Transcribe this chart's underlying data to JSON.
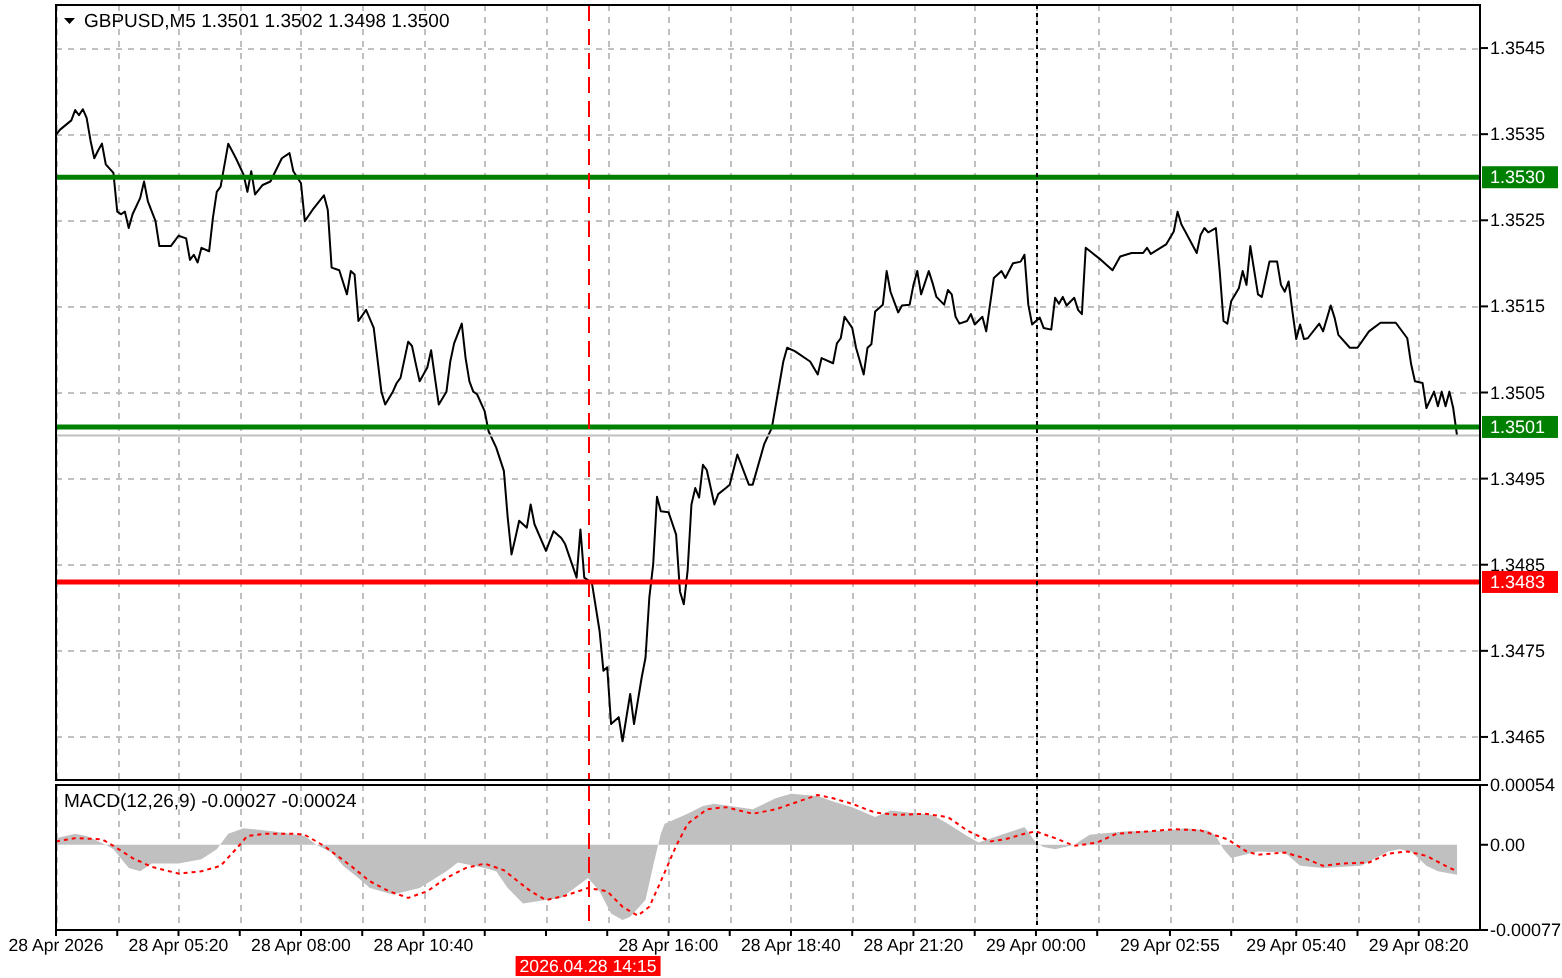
{
  "chart_data": [
    {
      "type": "line",
      "title": "GBPUSD,M5 1.3501 1.3502 1.3498 1.3500",
      "series": [
        {
          "color": "#000000",
          "x": [
            "2026-04-28T02:40",
            "2026-04-28T02:45",
            "2026-04-28T03:00",
            "2026-04-28T03:05",
            "2026-04-28T03:10",
            "2026-04-28T03:15",
            "2026-04-28T03:20",
            "2026-04-28T03:25",
            "2026-04-28T03:30",
            "2026-04-28T03:35",
            "2026-04-28T03:40",
            "2026-04-28T03:45",
            "2026-04-28T03:55",
            "2026-04-28T04:00",
            "2026-04-28T04:05",
            "2026-04-28T04:10",
            "2026-04-28T04:15",
            "2026-04-28T04:20",
            "2026-04-28T04:30",
            "2026-04-28T04:35",
            "2026-04-28T04:40",
            "2026-04-28T04:50",
            "2026-04-28T04:55",
            "2026-04-28T05:10",
            "2026-04-28T05:20",
            "2026-04-28T05:30",
            "2026-04-28T05:35",
            "2026-04-28T05:40",
            "2026-04-28T05:45",
            "2026-04-28T05:50",
            "2026-04-28T06:00",
            "2026-04-28T06:05",
            "2026-04-28T06:10",
            "2026-04-28T06:15",
            "2026-04-28T06:25",
            "2026-04-28T06:35",
            "2026-04-28T06:45",
            "2026-04-28T06:50",
            "2026-04-28T06:55",
            "2026-04-28T07:00",
            "2026-04-28T07:10",
            "2026-04-28T07:20",
            "2026-04-28T07:35",
            "2026-04-28T07:45",
            "2026-04-28T07:50",
            "2026-04-28T08:00",
            "2026-04-28T08:05",
            "2026-04-28T08:15",
            "2026-04-28T08:30",
            "2026-04-28T08:35",
            "2026-04-28T08:40",
            "2026-04-28T08:50",
            "2026-04-28T09:00",
            "2026-04-28T09:05",
            "2026-04-28T09:10",
            "2026-04-28T09:15",
            "2026-04-28T09:25",
            "2026-04-28T09:35",
            "2026-04-28T09:45",
            "2026-04-28T09:50",
            "2026-04-28T10:00",
            "2026-04-28T10:05",
            "2026-04-28T10:10",
            "2026-04-28T10:20",
            "2026-04-28T10:25",
            "2026-04-28T10:30",
            "2026-04-28T10:35",
            "2026-04-28T10:45",
            "2026-04-28T10:50",
            "2026-04-28T10:55",
            "2026-04-28T11:00",
            "2026-04-28T11:10",
            "2026-04-28T11:15",
            "2026-04-28T11:20",
            "2026-04-28T11:30",
            "2026-04-28T11:35",
            "2026-04-28T11:40",
            "2026-04-28T11:45",
            "2026-04-28T11:50",
            "2026-04-28T12:00",
            "2026-04-28T12:05",
            "2026-04-28T12:15",
            "2026-04-28T12:25",
            "2026-04-28T12:30",
            "2026-04-28T12:35",
            "2026-04-28T12:40",
            "2026-04-28T12:45",
            "2026-04-28T12:55",
            "2026-04-28T13:00",
            "2026-04-28T13:05",
            "2026-04-28T13:20",
            "2026-04-28T13:30",
            "2026-04-28T13:40",
            "2026-04-28T13:45",
            "2026-04-28T14:00",
            "2026-04-28T14:05",
            "2026-04-28T14:10",
            "2026-04-28T14:20",
            "2026-04-28T14:30",
            "2026-04-28T14:35",
            "2026-04-28T14:40",
            "2026-04-28T14:45",
            "2026-04-28T14:55",
            "2026-04-28T15:00",
            "2026-04-28T15:10",
            "2026-04-28T15:15",
            "2026-04-28T15:25",
            "2026-04-28T15:30",
            "2026-04-28T15:35",
            "2026-04-28T15:40",
            "2026-04-28T15:45",
            "2026-04-28T15:50",
            "2026-04-28T16:00",
            "2026-04-28T16:10",
            "2026-04-28T16:15",
            "2026-04-28T16:20",
            "2026-04-28T16:25",
            "2026-04-28T16:30",
            "2026-04-28T16:35",
            "2026-04-28T16:40",
            "2026-04-28T16:45",
            "2026-04-28T16:50",
            "2026-04-28T17:00",
            "2026-04-28T17:05",
            "2026-04-28T17:15",
            "2026-04-28T17:20",
            "2026-04-28T17:30",
            "2026-04-28T17:45",
            "2026-04-28T17:50",
            "2026-04-28T18:05",
            "2026-04-28T18:15",
            "2026-04-28T18:30",
            "2026-04-28T18:35",
            "2026-04-28T18:45",
            "2026-04-28T19:05",
            "2026-04-28T19:15",
            "2026-04-28T19:20",
            "2026-04-28T19:35",
            "2026-04-28T19:40",
            "2026-04-28T19:45",
            "2026-04-28T19:50",
            "2026-04-28T20:00",
            "2026-04-28T20:05",
            "2026-04-28T20:15",
            "2026-04-28T20:20",
            "2026-04-28T20:25",
            "2026-04-28T20:30",
            "2026-04-28T20:40",
            "2026-04-28T20:45",
            "2026-04-28T20:50",
            "2026-04-28T21:00",
            "2026-04-28T21:05",
            "2026-04-28T21:15",
            "2026-04-28T21:20",
            "2026-04-28T21:25",
            "2026-04-28T21:30",
            "2026-04-28T21:40",
            "2026-04-28T21:45",
            "2026-04-28T21:50",
            "2026-04-28T22:00",
            "2026-04-28T22:05",
            "2026-04-28T22:10",
            "2026-04-28T22:15",
            "2026-04-28T22:20",
            "2026-04-28T22:30",
            "2026-04-28T22:35",
            "2026-04-28T22:40",
            "2026-04-28T22:50",
            "2026-04-28T22:55",
            "2026-04-28T23:00",
            "2026-04-28T23:05",
            "2026-04-28T23:15",
            "2026-04-28T23:20",
            "2026-04-28T23:30",
            "2026-04-28T23:40",
            "2026-04-28T23:45",
            "2026-04-28T23:50",
            "2026-04-28T23:55",
            "2026-04-29T00:05",
            "2026-04-29T00:10",
            "2026-04-29T00:20",
            "2026-04-29T00:25",
            "2026-04-29T00:30",
            "2026-04-29T00:35",
            "2026-04-29T00:40",
            "2026-04-29T00:50",
            "2026-04-29T00:55",
            "2026-04-29T01:00",
            "2026-04-29T01:05",
            "2026-04-29T01:25",
            "2026-04-29T01:40",
            "2026-04-29T01:50",
            "2026-04-29T02:05",
            "2026-04-29T02:20",
            "2026-04-29T02:25",
            "2026-04-29T02:30",
            "2026-04-29T02:50",
            "2026-04-29T03:00",
            "2026-04-29T03:05",
            "2026-04-29T03:10",
            "2026-04-29T03:15",
            "2026-04-29T03:30",
            "2026-04-29T03:35",
            "2026-04-29T03:40",
            "2026-04-29T03:45",
            "2026-04-29T03:55",
            "2026-04-29T04:00",
            "2026-04-29T04:05",
            "2026-04-29T04:10",
            "2026-04-29T04:15",
            "2026-04-29T04:25",
            "2026-04-29T04:30",
            "2026-04-29T04:35",
            "2026-04-29T04:40",
            "2026-04-29T04:50",
            "2026-04-29T04:55",
            "2026-04-29T05:05",
            "2026-04-29T05:15",
            "2026-04-29T05:20",
            "2026-04-29T05:25",
            "2026-04-29T05:30",
            "2026-04-29T05:35",
            "2026-04-29T05:40",
            "2026-04-29T05:45",
            "2026-04-29T05:50",
            "2026-04-29T05:55",
            "2026-04-29T06:10",
            "2026-04-29T06:15",
            "2026-04-29T06:25",
            "2026-04-29T06:30",
            "2026-04-29T06:35",
            "2026-04-29T06:50",
            "2026-04-29T07:00",
            "2026-04-29T07:15",
            "2026-04-29T07:30",
            "2026-04-29T07:50",
            "2026-04-29T08:05",
            "2026-04-29T08:10",
            "2026-04-29T08:15",
            "2026-04-29T08:25",
            "2026-04-29T08:30",
            "2026-04-29T08:40",
            "2026-04-29T08:45",
            "2026-04-29T08:50",
            "2026-04-29T08:55",
            "2026-04-29T09:00",
            "2026-04-29T09:05",
            "2026-04-29T09:10"
          ],
          "values": [
            1.35349,
            1.35355,
            1.35366,
            1.35378,
            1.35372,
            1.35379,
            1.35369,
            1.35343,
            1.35322,
            1.35331,
            1.35339,
            1.35315,
            1.35305,
            1.3526,
            1.35257,
            1.3526,
            1.35241,
            1.35257,
            1.35276,
            1.35295,
            1.35272,
            1.35249,
            1.3522,
            1.3522,
            1.35232,
            1.35229,
            1.35204,
            1.3521,
            1.35201,
            1.35218,
            1.35214,
            1.35253,
            1.35283,
            1.35289,
            1.35339,
            1.35322,
            1.35303,
            1.35283,
            1.35307,
            1.3528,
            1.35291,
            1.35295,
            1.35322,
            1.35328,
            1.35307,
            1.35293,
            1.35249,
            1.35262,
            1.35279,
            1.35262,
            1.35195,
            1.35192,
            1.35164,
            1.35191,
            1.35187,
            1.35133,
            1.35146,
            1.35125,
            1.35051,
            1.35036,
            1.35051,
            1.35061,
            1.35067,
            1.35109,
            1.35104,
            1.35083,
            1.35063,
            1.35079,
            1.35099,
            1.35067,
            1.35036,
            1.35051,
            1.35086,
            1.35107,
            1.3513,
            1.3509,
            1.35063,
            1.35051,
            1.35048,
            1.35028,
            1.35005,
            1.34986,
            1.34959,
            1.34905,
            1.34862,
            1.34881,
            1.34901,
            1.34893,
            1.3492,
            1.34897,
            1.34866,
            1.34889,
            1.34881,
            1.34874,
            1.34835,
            1.34891,
            1.34835,
            1.34829,
            1.34773,
            1.34727,
            1.34731,
            1.34665,
            1.34673,
            1.34645,
            1.347,
            1.34665,
            1.34719,
            1.34742,
            1.34812,
            1.3485,
            1.34929,
            1.34912,
            1.34911,
            1.34885,
            1.34819,
            1.34804,
            1.34843,
            1.3492,
            1.34939,
            1.34928,
            1.34966,
            1.3496,
            1.3492,
            1.34932,
            1.34939,
            1.34943,
            1.34978,
            1.34943,
            1.34943,
            1.3499,
            1.35009,
            1.35086,
            1.35102,
            1.35098,
            1.35086,
            1.35071,
            1.3509,
            1.35084,
            1.35107,
            1.35113,
            1.35138,
            1.35125,
            1.35102,
            1.35071,
            1.35102,
            1.35106,
            1.35144,
            1.35152,
            1.35191,
            1.35167,
            1.35143,
            1.35151,
            1.35152,
            1.35175,
            1.35191,
            1.35164,
            1.35191,
            1.35177,
            1.35161,
            1.35152,
            1.35169,
            1.35164,
            1.35138,
            1.3513,
            1.35133,
            1.35141,
            1.35129,
            1.35138,
            1.35121,
            1.35152,
            1.35183,
            1.35191,
            1.35183,
            1.352,
            1.35202,
            1.3521,
            1.35152,
            1.35129,
            1.35137,
            1.35125,
            1.35123,
            1.3516,
            1.35153,
            1.35161,
            1.35151,
            1.3516,
            1.35146,
            1.35141,
            1.35218,
            1.35204,
            1.35192,
            1.35208,
            1.35212,
            1.35212,
            1.35218,
            1.35211,
            1.35222,
            1.35237,
            1.3526,
            1.35245,
            1.35237,
            1.35212,
            1.35233,
            1.35241,
            1.35236,
            1.35241,
            1.35191,
            1.35133,
            1.3513,
            1.35156,
            1.35171,
            1.35191,
            1.35175,
            1.3522,
            1.35164,
            1.35161,
            1.35202,
            1.35202,
            1.35175,
            1.35167,
            1.35179,
            1.35144,
            1.35112,
            1.35129,
            1.35112,
            1.35113,
            1.3513,
            1.35121,
            1.35151,
            1.35137,
            1.35117,
            1.35102,
            1.35102,
            1.35121,
            1.35131,
            1.35131,
            1.35113,
            1.35083,
            1.35063,
            1.35061,
            1.35032,
            1.35051,
            1.35034,
            1.35051,
            1.35034,
            1.35051,
            1.35032,
            1.35
          ]
        }
      ],
      "xlim": [
        "2026-04-28T02:40",
        "2026-04-29T09:40"
      ],
      "xticks": [
        {
          "value": "2026-04-28T02:40",
          "label": null
        },
        {
          "value": "2026-04-28T04:00",
          "label": null
        },
        {
          "value": "2026-04-28T05:20",
          "label": null
        },
        {
          "value": "2026-04-28T06:40",
          "label": null
        },
        {
          "value": "2026-04-28T08:00",
          "label": null
        },
        {
          "value": "2026-04-28T09:20",
          "label": null
        },
        {
          "value": "2026-04-28T10:40",
          "label": null
        },
        {
          "value": "2026-04-28T12:00",
          "label": null
        },
        {
          "value": "2026-04-28T13:20",
          "label": null
        },
        {
          "value": "2026-04-28T14:40",
          "label": null
        },
        {
          "value": "2026-04-28T16:00",
          "label": null
        },
        {
          "value": "2026-04-28T17:20",
          "label": null
        },
        {
          "value": "2026-04-28T18:40",
          "label": null
        },
        {
          "value": "2026-04-28T20:00",
          "label": null
        },
        {
          "value": "2026-04-28T21:20",
          "label": null
        },
        {
          "value": "2026-04-28T22:40",
          "label": null
        },
        {
          "value": "2026-04-29T00:00",
          "label": null
        },
        {
          "value": "2026-04-29T01:20",
          "label": null
        },
        {
          "value": "2026-04-29T02:55",
          "label": null
        },
        {
          "value": "2026-04-29T04:15",
          "label": null
        },
        {
          "value": "2026-04-29T05:40",
          "label": null
        },
        {
          "value": "2026-04-29T07:00",
          "label": null
        },
        {
          "value": "2026-04-29T08:20",
          "label": null
        }
      ],
      "ylim": [
        1.346,
        1.355
      ],
      "yticks": [
        1.3545,
        1.3535,
        1.3525,
        1.3515,
        1.3505,
        1.3495,
        1.3485,
        1.3475,
        1.3465
      ],
      "grid": true,
      "tick_labels": "y",
      "ref_lines": [
        {
          "axis": "y",
          "value": 1.353,
          "label": "1.3530",
          "color": "#008000"
        },
        {
          "axis": "y",
          "value": 1.3501,
          "label": "1.3501",
          "color": "#008000"
        },
        {
          "axis": "y",
          "value": 1.35,
          "color": "#c0c0c0"
        },
        {
          "axis": "y",
          "value": 1.3483,
          "label": "1.3483",
          "color": "#ff0000"
        },
        {
          "axis": "x",
          "value": "2026-04-28T14:15",
          "color": "#ff0000",
          "line_style": "dashed"
        },
        {
          "axis": "x",
          "value": "2026-04-29T00:00",
          "color": "#000000",
          "line_style": "dotted"
        }
      ]
    },
    {
      "type": "area",
      "title": "MACD(12,26,9) -0.00027 -0.00024",
      "series": [
        {
          "color": "#c0c0c0",
          "x": [
            "2026-04-28T02:40",
            "2026-04-28T03:05",
            "2026-04-28T03:20",
            "2026-04-28T03:45",
            "2026-04-28T03:55",
            "2026-04-28T04:15",
            "2026-04-28T04:30",
            "2026-04-28T04:45",
            "2026-04-28T05:20",
            "2026-04-28T05:50",
            "2026-04-28T06:10",
            "2026-04-28T06:25",
            "2026-04-28T06:45",
            "2026-04-28T07:25",
            "2026-04-28T08:05",
            "2026-04-28T08:20",
            "2026-04-28T08:40",
            "2026-04-28T08:55",
            "2026-04-28T09:15",
            "2026-04-28T09:30",
            "2026-04-28T10:00",
            "2026-04-28T10:35",
            "2026-04-28T11:10",
            "2026-04-28T11:25",
            "2026-04-28T12:00",
            "2026-04-28T12:15",
            "2026-04-28T12:30",
            "2026-04-28T12:50",
            "2026-04-28T13:20",
            "2026-04-28T13:40",
            "2026-04-28T14:15",
            "2026-04-28T14:30",
            "2026-04-28T14:45",
            "2026-04-28T15:00",
            "2026-04-28T15:10",
            "2026-04-28T15:30",
            "2026-04-28T15:40",
            "2026-04-28T15:50",
            "2026-04-28T15:55",
            "2026-04-28T16:25",
            "2026-04-28T16:45",
            "2026-04-28T17:00",
            "2026-04-28T17:50",
            "2026-04-28T18:05",
            "2026-04-28T18:20",
            "2026-04-28T18:40",
            "2026-04-28T19:15",
            "2026-04-28T19:35",
            "2026-04-28T20:00",
            "2026-04-28T20:30",
            "2026-04-28T20:50",
            "2026-04-28T21:45",
            "2026-04-28T22:05",
            "2026-04-28T22:30",
            "2026-04-28T22:45",
            "2026-04-28T23:15",
            "2026-04-28T23:45",
            "2026-04-29T00:00",
            "2026-04-29T00:10",
            "2026-04-29T00:25",
            "2026-04-29T00:50",
            "2026-04-29T01:10",
            "2026-04-29T01:55",
            "2026-04-29T02:50",
            "2026-04-29T03:15",
            "2026-04-29T03:45",
            "2026-04-29T03:55",
            "2026-04-29T04:05",
            "2026-04-29T04:15",
            "2026-04-29T04:50",
            "2026-04-29T05:25",
            "2026-04-29T05:45",
            "2026-04-29T06:15",
            "2026-04-29T07:05",
            "2026-04-29T07:40",
            "2026-04-29T07:55",
            "2026-04-29T08:10",
            "2026-04-29T08:30",
            "2026-04-29T08:45",
            "2026-04-29T09:10"
          ],
          "values": [
            6e-05,
            0.0001,
            8e-05,
            0,
            -4e-05,
            -0.00021,
            -0.00024,
            -0.00017,
            -0.00017,
            -0.00013,
            -4e-05,
            0.0001,
            0.00015,
            0.00012,
            8e-05,
            0,
            -7e-05,
            -0.00019,
            -0.0003,
            -0.00039,
            -0.00045,
            -0.00039,
            -0.00024,
            -0.00016,
            -0.00021,
            -0.00024,
            -0.00039,
            -0.00053,
            -0.0005,
            -0.00048,
            -0.0003,
            -0.00042,
            -0.00062,
            -0.00068,
            -0.00065,
            -0.0005,
            -0.00019,
            0.0001,
            0.00019,
            0.00028,
            0.00035,
            0.00037,
            0.00032,
            0.00037,
            0.00042,
            0.00046,
            0.00044,
            0.00039,
            0.00034,
            0.00025,
            0.00031,
            0.00027,
            0.00019,
            8e-05,
            2e-05,
            9e-05,
            0.00016,
            2e-05,
            -2e-05,
            -4e-05,
            0,
            9e-05,
            0.00012,
            0.00013,
            0.00015,
            0.00013,
            8e-05,
            -4e-05,
            -0.00012,
            -6e-05,
            -7e-05,
            -0.00019,
            -0.00021,
            -0.00019,
            -6e-05,
            -4e-05,
            -6e-05,
            -0.00019,
            -0.00024,
            -0.00027
          ]
        },
        {
          "type": "line",
          "color": "#ff0000",
          "line_style": "dotted",
          "x": [
            "2026-04-28T02:40",
            "2026-04-28T03:05",
            "2026-04-28T03:40",
            "2026-04-28T03:55",
            "2026-04-28T04:20",
            "2026-04-28T04:45",
            "2026-04-28T05:20",
            "2026-04-28T05:50",
            "2026-04-28T06:15",
            "2026-04-28T06:35",
            "2026-04-28T06:50",
            "2026-04-28T07:15",
            "2026-04-28T07:50",
            "2026-04-28T08:05",
            "2026-04-28T08:30",
            "2026-04-28T09:05",
            "2026-04-28T09:30",
            "2026-04-28T09:55",
            "2026-04-28T10:20",
            "2026-04-28T10:45",
            "2026-04-28T11:10",
            "2026-04-28T11:35",
            "2026-04-28T12:00",
            "2026-04-28T12:25",
            "2026-04-28T13:00",
            "2026-04-28T13:20",
            "2026-04-28T13:45",
            "2026-04-28T14:15",
            "2026-04-28T14:40",
            "2026-04-28T15:00",
            "2026-04-28T15:20",
            "2026-04-28T15:35",
            "2026-04-28T15:50",
            "2026-04-28T16:10",
            "2026-04-28T16:25",
            "2026-04-28T16:50",
            "2026-04-28T17:15",
            "2026-04-28T17:50",
            "2026-04-28T18:20",
            "2026-04-28T18:45",
            "2026-04-28T19:15",
            "2026-04-28T19:35",
            "2026-04-28T20:00",
            "2026-04-28T20:30",
            "2026-04-28T21:00",
            "2026-04-28T21:35",
            "2026-04-28T22:05",
            "2026-04-28T22:30",
            "2026-04-28T23:00",
            "2026-04-28T23:20",
            "2026-04-28T23:45",
            "2026-04-29T00:00",
            "2026-04-29T00:25",
            "2026-04-29T00:50",
            "2026-04-29T01:20",
            "2026-04-29T01:45",
            "2026-04-29T02:25",
            "2026-04-29T03:00",
            "2026-04-29T03:35",
            "2026-04-29T04:10",
            "2026-04-29T04:35",
            "2026-04-29T04:50",
            "2026-04-29T05:25",
            "2026-04-29T05:50",
            "2026-04-29T06:15",
            "2026-04-29T06:40",
            "2026-04-29T07:15",
            "2026-04-29T07:40",
            "2026-04-29T08:05",
            "2026-04-29T08:30",
            "2026-04-29T08:55",
            "2026-04-29T09:10"
          ],
          "values": [
            3e-05,
            6e-05,
            5e-05,
            -1e-05,
            -0.00012,
            -0.0002,
            -0.00026,
            -0.00024,
            -0.00019,
            -4e-05,
            8e-05,
            0.0001,
            0.0001,
            9e-05,
            -1e-05,
            -0.00019,
            -0.00033,
            -0.00042,
            -0.00048,
            -0.00042,
            -0.0003,
            -0.00021,
            -0.00017,
            -0.00023,
            -0.00042,
            -0.0005,
            -0.00046,
            -0.00039,
            -0.00042,
            -0.00056,
            -0.00064,
            -0.00056,
            -0.00033,
            -1e-05,
            0.00019,
            0.00032,
            0.00034,
            0.00028,
            0.00032,
            0.00038,
            0.00045,
            0.00042,
            0.00037,
            0.00029,
            0.00027,
            0.00028,
            0.00025,
            0.00013,
            3e-05,
            5e-05,
            0.0001,
            0.00012,
            6e-05,
            -1e-05,
            2e-05,
            0.0001,
            0.00012,
            0.00014,
            0.00013,
            5e-05,
            -6e-05,
            -9e-05,
            -7e-05,
            -0.00012,
            -0.00019,
            -0.00017,
            -0.00016,
            -8e-05,
            -6e-05,
            -0.0001,
            -0.00019,
            -0.00024
          ]
        }
      ],
      "xlim": [
        "2026-04-28T02:40",
        "2026-04-29T09:40"
      ],
      "xticks": [
        {
          "value": "2026-04-28T02:40",
          "label": "28 Apr 2026"
        },
        {
          "value": "2026-04-28T04:00",
          "label": null
        },
        {
          "value": "2026-04-28T05:20",
          "label": "28 Apr 05:20"
        },
        {
          "value": "2026-04-28T06:40",
          "label": null
        },
        {
          "value": "2026-04-28T08:00",
          "label": "28 Apr 08:00"
        },
        {
          "value": "2026-04-28T09:20",
          "label": null
        },
        {
          "value": "2026-04-28T10:40",
          "label": "28 Apr 10:40"
        },
        {
          "value": "2026-04-28T12:00",
          "label": null
        },
        {
          "value": "2026-04-28T13:20",
          "label": null
        },
        {
          "value": "2026-04-28T14:40",
          "label": null
        },
        {
          "value": "2026-04-28T16:00",
          "label": "28 Apr 16:00"
        },
        {
          "value": "2026-04-28T17:20",
          "label": null
        },
        {
          "value": "2026-04-28T18:40",
          "label": "28 Apr 18:40"
        },
        {
          "value": "2026-04-28T20:00",
          "label": null
        },
        {
          "value": "2026-04-28T21:20",
          "label": "28 Apr 21:20"
        },
        {
          "value": "2026-04-28T22:40",
          "label": null
        },
        {
          "value": "2026-04-29T00:00",
          "label": "29 Apr 00:00"
        },
        {
          "value": "2026-04-29T01:20",
          "label": null
        },
        {
          "value": "2026-04-29T02:55",
          "label": "29 Apr 02:55"
        },
        {
          "value": "2026-04-29T04:15",
          "label": null
        },
        {
          "value": "2026-04-29T05:40",
          "label": "29 Apr 05:40"
        },
        {
          "value": "2026-04-29T07:00",
          "label": null
        },
        {
          "value": "2026-04-29T08:20",
          "label": "29 Apr 08:20"
        }
      ],
      "ylim": [
        -0.00077,
        0.00054
      ],
      "yticks": [
        0.00054,
        {
          "value": 0,
          "label": "0.00"
        },
        -0.00077
      ],
      "grid": "x",
      "ref_lines": [
        {
          "axis": "x",
          "value": "2026-04-28T14:15",
          "label": "2026.04.28 14:15",
          "color": "#ff0000",
          "line_style": "dashed"
        },
        {
          "axis": "x",
          "value": "2026-04-29T00:00",
          "color": "#000000",
          "line_style": "dotted"
        }
      ]
    }
  ]
}
